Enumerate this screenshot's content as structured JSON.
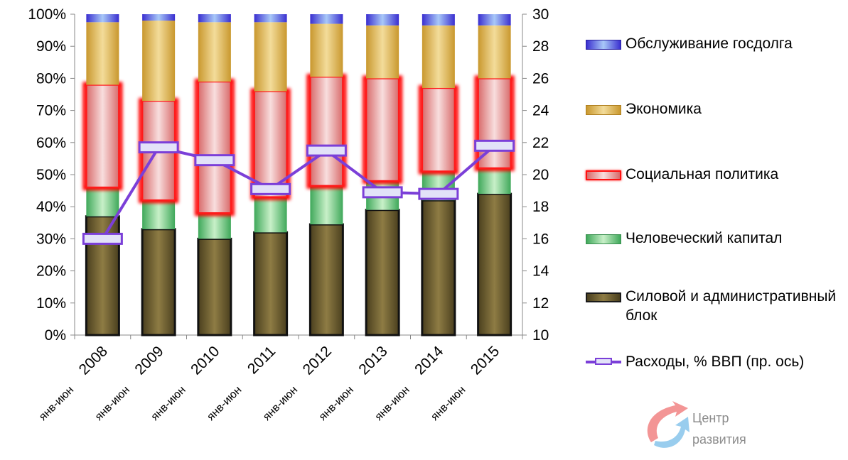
{
  "chart_data": {
    "type": "bar",
    "stacked": true,
    "categories": [
      "2008",
      "2009",
      "2010",
      "2011",
      "2012",
      "2013",
      "2014",
      "2015"
    ],
    "category_sublabel": "янв-июн",
    "y_left": {
      "min": 0,
      "max": 100,
      "step": 10,
      "suffix": "%"
    },
    "y_right": {
      "min": 10,
      "max": 30,
      "step": 2
    },
    "series": [
      {
        "name": "Силовой и административный блок",
        "color": "#6e5f2f",
        "values": [
          37,
          33,
          30,
          32,
          34.5,
          39,
          42,
          44
        ]
      },
      {
        "name": "Человеческий капитал",
        "color": "#72c27a",
        "values": [
          9,
          9,
          8,
          11,
          12,
          9,
          9,
          8
        ]
      },
      {
        "name": "Социальная политика",
        "color": "#e8a0a0",
        "values": [
          32,
          31,
          41,
          33,
          34,
          32,
          26,
          28
        ]
      },
      {
        "name": "Экономика",
        "color": "#e0b95a",
        "values": [
          19.5,
          25,
          18.5,
          21.5,
          16.5,
          16.5,
          19.5,
          16.5
        ]
      },
      {
        "name": "Обслуживание госдолга",
        "color": "#5b4fe0",
        "values": [
          2.5,
          2,
          2.5,
          2.5,
          3,
          3.5,
          3.5,
          3.5
        ]
      }
    ],
    "line": {
      "name": "Расходы, % ВВП  (пр. ось)",
      "axis": "right",
      "color": "#7b3fd8",
      "values": [
        16,
        21.7,
        20.9,
        19.1,
        21.5,
        18.9,
        18.8,
        21.8
      ]
    }
  },
  "legend": [
    {
      "label": "Обслуживание госдолга",
      "kind": "bar",
      "color": "#5b4fe0"
    },
    {
      "label": "Экономика",
      "kind": "bar",
      "color": "#e0b95a"
    },
    {
      "label": "Социальная политика",
      "kind": "bar",
      "color": "#e8a0a0"
    },
    {
      "label": "Человеческий капитал",
      "kind": "bar",
      "color": "#72c27a"
    },
    {
      "label": "Силовой и административный блок",
      "kind": "bar",
      "color": "#6e5f2f"
    },
    {
      "label": "Расходы, % ВВП  (пр. ось)",
      "kind": "line",
      "color": "#7b3fd8"
    }
  ],
  "logo": {
    "line1": "Центр",
    "line2": "развития"
  }
}
